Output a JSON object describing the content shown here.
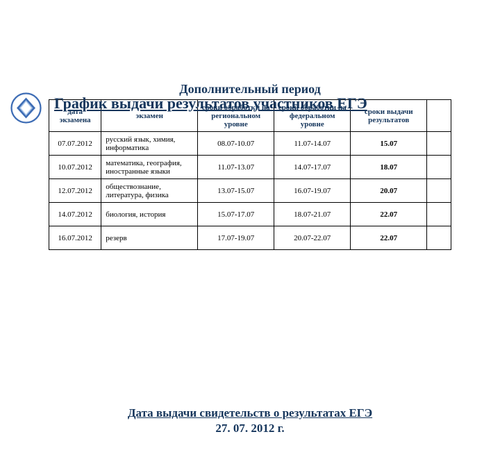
{
  "title": "График выдачи результатов участников ЕГЭ",
  "section_title": "Дополнительный период",
  "headers": {
    "date": "дата экзамена",
    "subject": "экзамен",
    "regional": "сроки обработки на региональном уровне",
    "federal": "сроки обработки на федеральном уровне",
    "result": "сроки выдачи результатов"
  },
  "rows": [
    {
      "date": "07.07.2012",
      "subject": "русский язык, химия, информатика",
      "regional": "08.07-10.07",
      "federal": "11.07-14.07",
      "result": "15.07"
    },
    {
      "date": "10.07.2012",
      "subject": "математика, география, иностранные языки",
      "regional": "11.07-13.07",
      "federal": "14.07-17.07",
      "result": "18.07"
    },
    {
      "date": "12.07.2012",
      "subject": "обществознание, литература, физика",
      "regional": "13.07-15.07",
      "federal": "16.07-19.07",
      "result": "20.07"
    },
    {
      "date": "14.07.2012",
      "subject": "биология, история",
      "regional": "15.07-17.07",
      "federal": "18.07-21.07",
      "result": "22.07"
    },
    {
      "date": "16.07.2012",
      "subject": "резерв",
      "regional": "17.07-19.07",
      "federal": "20.07-22.07",
      "result": "22.07"
    }
  ],
  "footer_line1": "Дата выдачи свидетельств о результатах ЕГЭ",
  "footer_line2": "27. 07. 2012 г.",
  "colors": {
    "heading": "#16365c",
    "logo_blue": "#3e6db5",
    "logo_light": "#a8c4e8",
    "border": "#000000"
  },
  "fontsize": {
    "title": 22,
    "section": 18,
    "table": 11,
    "footer": 17
  }
}
